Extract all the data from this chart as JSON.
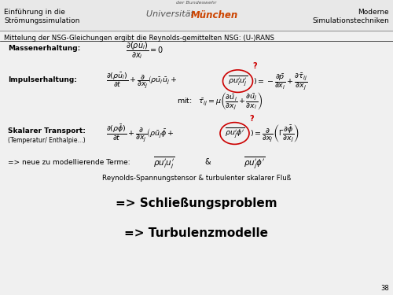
{
  "bg_color": "#f0f0f0",
  "header_bg": "#e8e8e8",
  "header_line_color": "#999999",
  "title_left": "Einführung in die\nStrömungssimulation",
  "title_center_small": "der Bundeswehr",
  "title_center_uni": "Universität",
  "title_center_munich": "München",
  "title_right": "Moderne\nSimulationstechniken",
  "slide_title": "Mittelung der NSG-Gleichungen ergibt die Reynolds-gemittelten NSG: (U-)RANS",
  "label_mass": "Massenerhaltung:",
  "eq_mass": "$\\dfrac{\\partial(\\rho\\bar{u}_i)}{\\partial x_i} = 0$",
  "label_impulse": "Impulserhaltung:",
  "eq_impulse_left": "$\\dfrac{\\partial(\\rho\\bar{u}_i)}{\\partial t} + \\dfrac{\\partial}{\\partial x_j}\\left(\\rho\\bar{u}_i\\bar{u}_j + $",
  "eq_impulse_circ": "$\\overline{\\rho u_i' u_j'}$",
  "eq_impulse_right": "$\\right) = -\\dfrac{\\partial\\bar{p}}{\\partial x_i} + \\dfrac{\\partial\\bar{\\tau}_{ij}}{\\partial x_j}$",
  "eq_mit": "mit:  $\\bar{\\tau}_{ij} = \\mu\\left(\\dfrac{\\partial\\bar{u}_i}{\\partial x_j} + \\dfrac{\\partial\\bar{u}_j}{\\partial x_i}\\right)$",
  "label_scalar": "Skalarer Transport:",
  "label_scalar_sub": "(Temperatur/ Enthalpie...)",
  "eq_scalar_left": "$\\dfrac{\\partial(\\rho\\bar{\\phi})}{\\partial t} + \\dfrac{\\partial}{\\partial x_j}\\left(\\rho\\bar{u}_j\\bar{\\phi} + $",
  "eq_scalar_circ": "$\\overline{\\rho u_j' \\phi'}$",
  "eq_scalar_right": "$\\right) = \\dfrac{\\partial}{\\partial x_j}\\left(\\Gamma\\dfrac{\\partial\\bar{\\phi}}{\\partial x_j}\\right)$",
  "new_terms_label": "=> neue zu modellierende Terme:",
  "new_term1": "$\\overline{\\rho u_i' u_j'}$",
  "new_term2": "$\\overline{\\rho u_j' \\phi'}$",
  "new_terms_desc": "Reynolds-Spannungstensor & turbulenter skalarer Fluß",
  "conclusion1": "=> Schließungsproblem",
  "conclusion2": "=> Turbulenzmodelle",
  "page_num": "38",
  "red_color": "#cc0000",
  "question_mark": "?",
  "amp": "&"
}
